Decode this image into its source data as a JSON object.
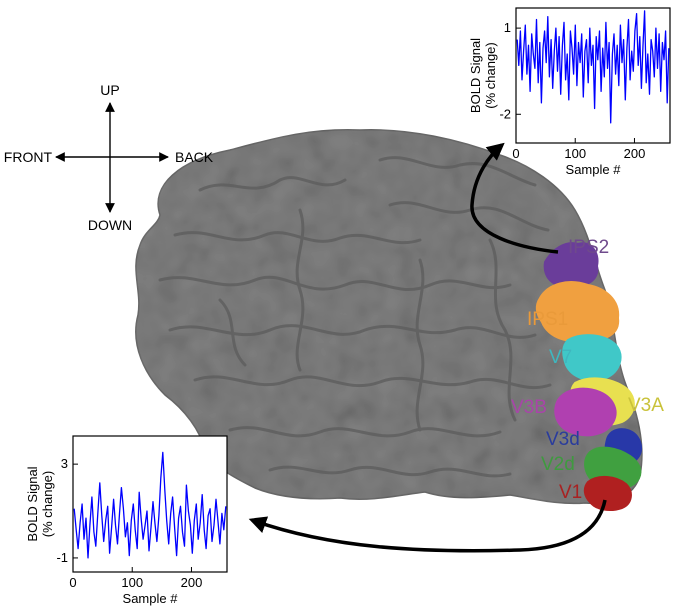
{
  "compass": {
    "up": "UP",
    "down": "DOWN",
    "front": "FRONT",
    "back": "BACK"
  },
  "regions": [
    {
      "label": "IPS2",
      "color": "#6a3d9a",
      "label_color": "#6f4a8c"
    },
    {
      "label": "IPS1",
      "color": "#f0a040",
      "label_color": "#e99a3a"
    },
    {
      "label": "V7",
      "color": "#40c8c8",
      "label_color": "#3fb7bf"
    },
    {
      "label": "V3A",
      "color": "#e8e050",
      "label_color": "#c9c23a"
    },
    {
      "label": "V3B",
      "color": "#b040b0",
      "label_color": "#a944a9"
    },
    {
      "label": "V3d",
      "color": "#2838a8",
      "label_color": "#2a3c9c"
    },
    {
      "label": "V2d",
      "color": "#40a040",
      "label_color": "#3f9a3f"
    },
    {
      "label": "V1",
      "color": "#b02020",
      "label_color": "#a82222"
    }
  ],
  "chart_data": [
    {
      "type": "line",
      "region": "IPS2",
      "xlabel": "Sample #",
      "ylabel": "BOLD Signal (% change)",
      "xticks": [
        0,
        100,
        200
      ],
      "yticks": [
        1,
        -2
      ],
      "xlim": [
        0,
        260
      ],
      "ylim": [
        -3,
        1.7
      ],
      "series_color": "#0000ff",
      "y": [
        0.6,
        -0.3,
        0.9,
        -0.8,
        0.2,
        1.1,
        -0.6,
        0.4,
        -1.2,
        0.8,
        0.1,
        -0.4,
        1.3,
        -0.9,
        0.5,
        -1.6,
        0.3,
        0.9,
        -0.2,
        1.4,
        -0.7,
        0.6,
        -1.1,
        0.2,
        1.0,
        -0.5,
        0.7,
        -1.3,
        0.4,
        1.2,
        -0.8,
        0.1,
        -1.5,
        0.9,
        0.3,
        -0.6,
        1.1,
        -1.0,
        0.5,
        -0.2,
        0.8,
        -1.4,
        0.2,
        0.6,
        -0.9,
        1.0,
        -0.3,
        0.4,
        -1.8,
        0.7,
        -0.1,
        0.9,
        -1.2,
        0.3,
        -0.7,
        1.2,
        -0.4,
        0.5,
        -2.3,
        0.1,
        0.8,
        -0.6,
        0.4,
        -1.0,
        1.1,
        -0.2,
        0.6,
        -1.5,
        0.3,
        1.3,
        -0.8,
        0.2,
        -0.5,
        0.9,
        1.5,
        -0.3,
        0.7,
        -1.1,
        0.4,
        1.6,
        -0.9,
        0.1,
        -1.3,
        0.6,
        0.2,
        -0.7,
        1.0,
        -0.4,
        0.8,
        -1.2,
        0.5,
        -0.1,
        0.9,
        -1.6,
        0.3
      ]
    },
    {
      "type": "line",
      "region": "V1",
      "xlabel": "Sample #",
      "ylabel": "BOLD Signal (% change)",
      "xticks": [
        0,
        100,
        200
      ],
      "yticks": [
        3,
        -1
      ],
      "xlim": [
        0,
        260
      ],
      "ylim": [
        -1.6,
        4.2
      ],
      "series_color": "#0000ff",
      "y": [
        1.1,
        0.2,
        -0.6,
        0.5,
        1.3,
        -0.2,
        0.7,
        -1.0,
        0.4,
        1.6,
        0.1,
        -0.5,
        0.9,
        2.2,
        0.8,
        -0.3,
        0.6,
        1.2,
        -0.8,
        0.3,
        1.5,
        0.4,
        -0.4,
        0.9,
        2.0,
        1.1,
        -0.1,
        0.5,
        -0.9,
        0.6,
        1.3,
        0.2,
        -0.6,
        1.8,
        0.7,
        -0.2,
        0.4,
        1.0,
        -0.7,
        0.3,
        1.4,
        0.5,
        -0.3,
        0.8,
        2.4,
        3.5,
        1.9,
        0.6,
        -0.4,
        0.9,
        1.6,
        0.3,
        -0.9,
        0.7,
        1.2,
        0.1,
        -0.5,
        2.1,
        1.0,
        0.4,
        -0.8,
        0.6,
        1.3,
        -0.2,
        0.5,
        1.7,
        0.2,
        -0.6,
        0.8,
        1.1,
        -0.3,
        0.4,
        1.5,
        0.6,
        -0.4,
        0.9,
        0.2,
        1.2
      ]
    }
  ]
}
